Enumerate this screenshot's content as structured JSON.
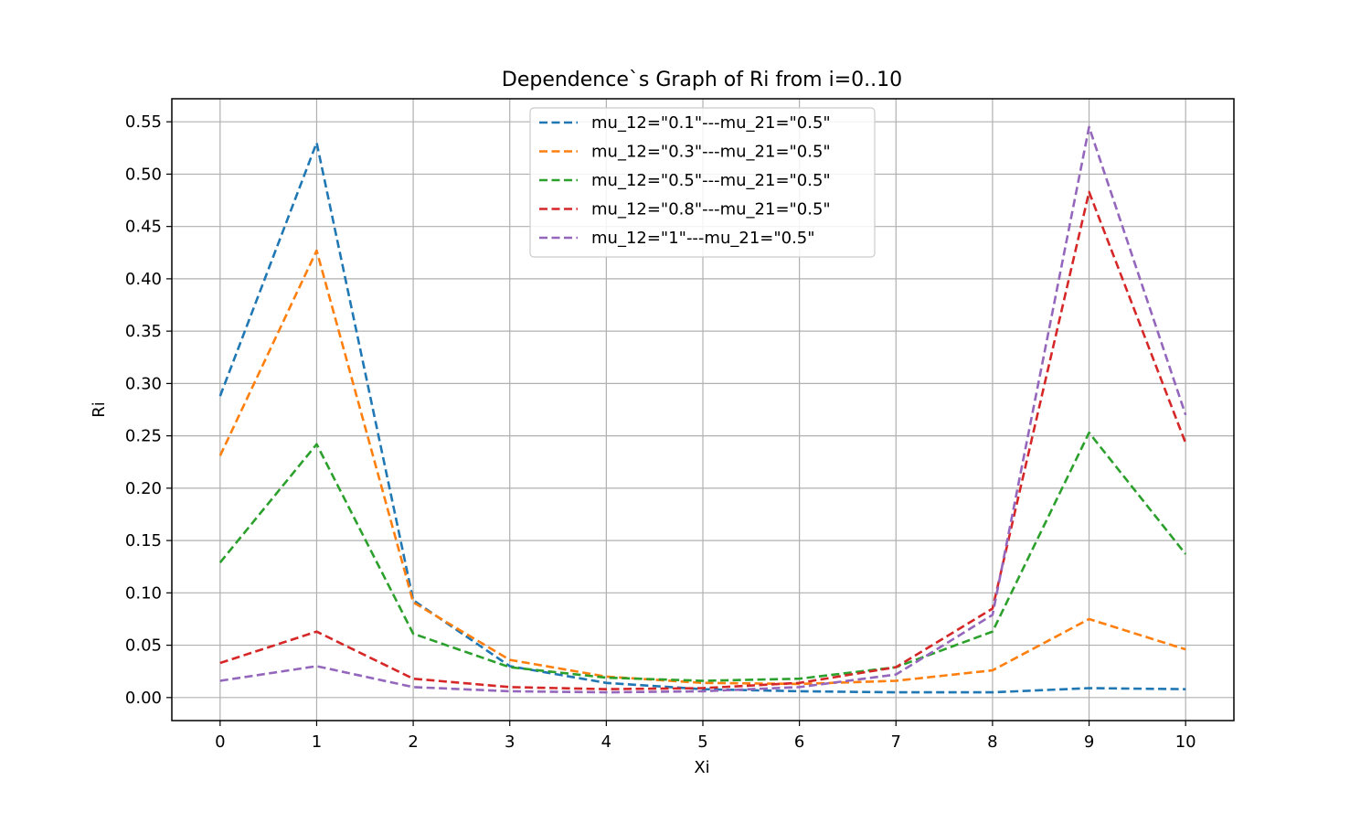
{
  "chart_data": {
    "type": "line",
    "title": "Dependence`s Graph of Ri from i=0..10",
    "xlabel": "Xi",
    "ylabel": "Ri",
    "x": [
      0,
      1,
      2,
      3,
      4,
      5,
      6,
      7,
      8,
      9,
      10
    ],
    "x_ticks": [
      "0",
      "1",
      "2",
      "3",
      "4",
      "5",
      "6",
      "7",
      "8",
      "9",
      "10"
    ],
    "y_ticks": [
      "0.00",
      "0.05",
      "0.10",
      "0.15",
      "0.20",
      "0.25",
      "0.30",
      "0.35",
      "0.40",
      "0.45",
      "0.50",
      "0.55"
    ],
    "xlim": [
      -0.5,
      10.5
    ],
    "ylim": [
      -0.022,
      0.572
    ],
    "grid": true,
    "legend_position": "top-center",
    "line_style": "dashed",
    "series": [
      {
        "name": "mu_12=\"0.1\"---mu_21=\"0.5\"",
        "color": "#1f77b4",
        "values": [
          0.288,
          0.53,
          0.093,
          0.03,
          0.014,
          0.008,
          0.006,
          0.005,
          0.005,
          0.009,
          0.008
        ]
      },
      {
        "name": "mu_12=\"0.3\"---mu_21=\"0.5\"",
        "color": "#ff7f0e",
        "values": [
          0.231,
          0.427,
          0.091,
          0.036,
          0.02,
          0.014,
          0.013,
          0.016,
          0.026,
          0.075,
          0.046
        ]
      },
      {
        "name": "mu_12=\"0.5\"---mu_21=\"0.5\"",
        "color": "#2ca02c",
        "values": [
          0.129,
          0.242,
          0.061,
          0.029,
          0.019,
          0.016,
          0.018,
          0.029,
          0.063,
          0.253,
          0.137
        ]
      },
      {
        "name": "mu_12=\"0.8\"---mu_21=\"0.5\"",
        "color": "#d62728",
        "values": [
          0.033,
          0.063,
          0.018,
          0.01,
          0.008,
          0.009,
          0.014,
          0.029,
          0.085,
          0.483,
          0.243
        ]
      },
      {
        "name": "mu_12=\"1\"---mu_21=\"0.5\"",
        "color": "#9467bd",
        "values": [
          0.016,
          0.03,
          0.01,
          0.006,
          0.005,
          0.006,
          0.01,
          0.022,
          0.079,
          0.545,
          0.27
        ]
      }
    ]
  }
}
